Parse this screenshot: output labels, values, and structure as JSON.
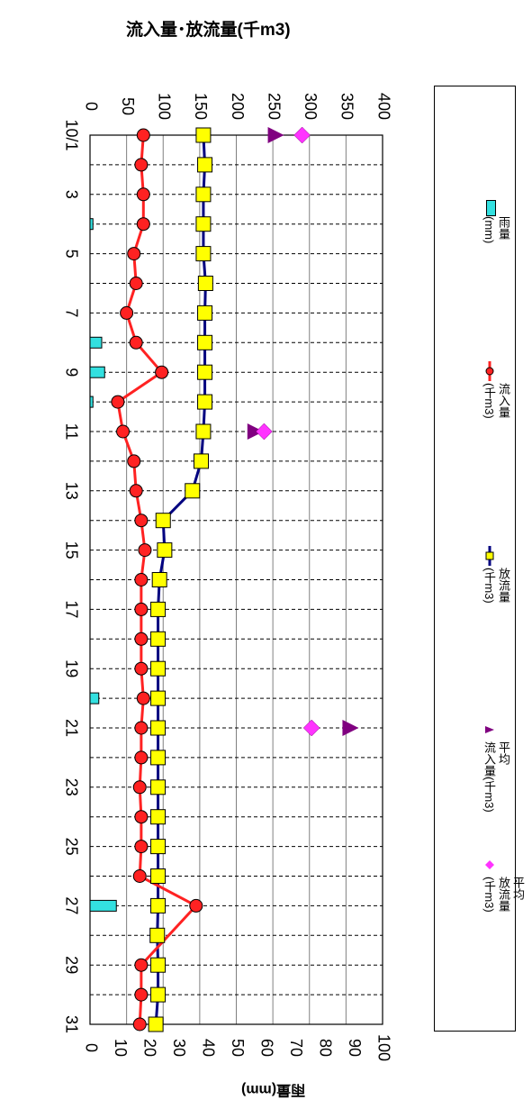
{
  "chart_data": {
    "type": "line",
    "title": "流入量･放流量(千m3)",
    "flow_axis": {
      "range": [
        0,
        400
      ],
      "ticks": [
        "0",
        "50",
        "100",
        "150",
        "200",
        "250",
        "300",
        "350",
        "400"
      ]
    },
    "rain_axis": {
      "label": "雨量(mm)",
      "range": [
        0,
        100
      ],
      "ticks": [
        "0",
        "10",
        "20",
        "30",
        "40",
        "50",
        "60",
        "70",
        "80",
        "90",
        "100"
      ]
    },
    "date_labels": [
      "10/1",
      "3",
      "5",
      "7",
      "9",
      "11",
      "13",
      "15",
      "17",
      "19",
      "21",
      "23",
      "25",
      "27",
      "29",
      "31"
    ],
    "x": [
      1,
      2,
      3,
      4,
      5,
      6,
      7,
      8,
      9,
      10,
      11,
      12,
      13,
      14,
      15,
      16,
      17,
      18,
      19,
      20,
      21,
      22,
      23,
      24,
      25,
      26,
      27,
      28,
      29,
      30,
      31
    ],
    "series": [
      {
        "name": "雨量\n(mm)",
        "kind": "bar",
        "axis": "rain",
        "color": "#33e0e0",
        "values": [
          0,
          0,
          0,
          1,
          0,
          0,
          0,
          4,
          5,
          1,
          0,
          0,
          0,
          0,
          0,
          0,
          0,
          0,
          0,
          3,
          0,
          0,
          0,
          0,
          0,
          0,
          9,
          0,
          0,
          0,
          0
        ]
      },
      {
        "name": "流入量\n(千m3)",
        "kind": "line",
        "axis": "flow",
        "color": "#ff2222",
        "values": [
          73,
          70,
          73,
          73,
          60,
          63,
          50,
          63,
          98,
          38,
          45,
          60,
          63,
          70,
          75,
          70,
          70,
          70,
          70,
          73,
          70,
          70,
          68,
          70,
          70,
          68,
          145,
          0,
          70,
          70,
          68
        ]
      },
      {
        "name": "放流量\n(千m3)",
        "kind": "line",
        "axis": "flow",
        "color": "#000080",
        "values": [
          155,
          157,
          155,
          155,
          155,
          158,
          157,
          157,
          157,
          157,
          155,
          152,
          140,
          100,
          102,
          95,
          93,
          93,
          93,
          93,
          93,
          93,
          93,
          93,
          93,
          93,
          93,
          92,
          93,
          93,
          90
        ]
      },
      {
        "name": "平均\n流入量(千m3)",
        "kind": "point",
        "axis": "flow",
        "color": "#800080",
        "points": [
          {
            "x": 1,
            "y": 253
          },
          {
            "x": 11,
            "y": 225
          },
          {
            "x": 21,
            "y": 355
          }
        ]
      },
      {
        "name": "平均\n放流量\n(千m3)",
        "kind": "point",
        "axis": "flow",
        "color": "#ff33ff",
        "points": [
          {
            "x": 1,
            "y": 290
          },
          {
            "x": 11,
            "y": 238
          },
          {
            "x": 21,
            "y": 303
          }
        ]
      }
    ]
  }
}
